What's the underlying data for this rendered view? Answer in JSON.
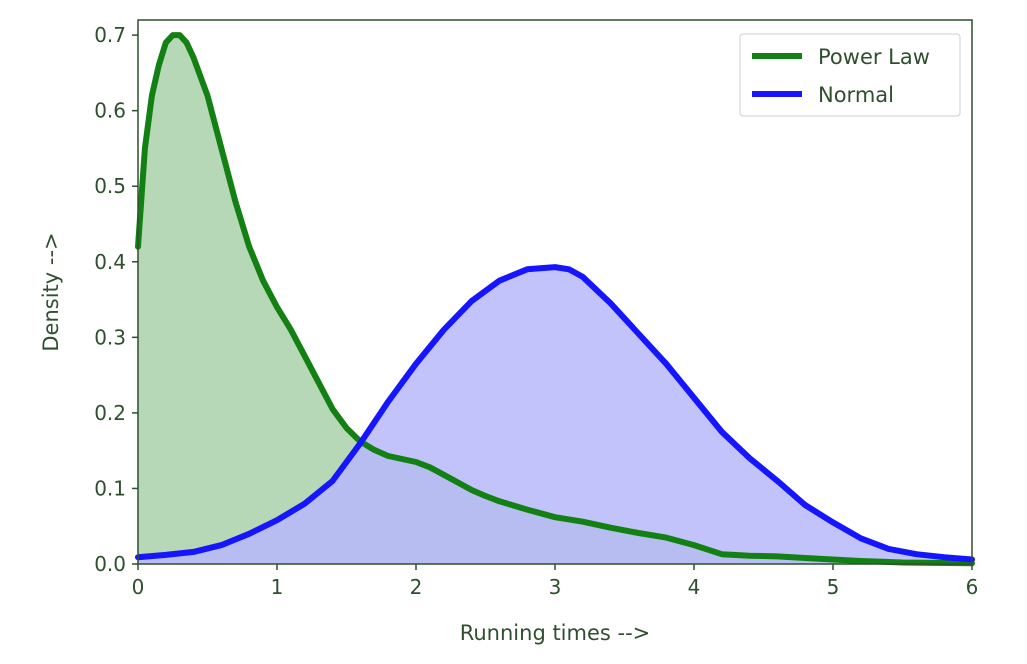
{
  "chart_data": {
    "type": "area",
    "title": "",
    "xlabel": "Running times  -->",
    "ylabel": "Density  -->",
    "xlim": [
      0,
      6
    ],
    "ylim": [
      0,
      0.72
    ],
    "xticks": [
      {
        "value": 0,
        "label": "0"
      },
      {
        "value": 1,
        "label": "1"
      },
      {
        "value": 2,
        "label": "2"
      },
      {
        "value": 3,
        "label": "3"
      },
      {
        "value": 4,
        "label": "4"
      },
      {
        "value": 5,
        "label": "5"
      },
      {
        "value": 6,
        "label": "6"
      }
    ],
    "yticks": [
      {
        "value": 0.0,
        "label": "0.0"
      },
      {
        "value": 0.1,
        "label": "0.1"
      },
      {
        "value": 0.2,
        "label": "0.2"
      },
      {
        "value": 0.3,
        "label": "0.3"
      },
      {
        "value": 0.4,
        "label": "0.4"
      },
      {
        "value": 0.5,
        "label": "0.5"
      },
      {
        "value": 0.6,
        "label": "0.6"
      },
      {
        "value": 0.7,
        "label": "0.7"
      }
    ],
    "grid": false,
    "legend_position": "top-right",
    "series": [
      {
        "name": "Power Law",
        "color": "#138013",
        "fill_color": "#a9d1a9",
        "x": [
          0,
          0.05,
          0.1,
          0.15,
          0.2,
          0.25,
          0.3,
          0.35,
          0.4,
          0.5,
          0.6,
          0.7,
          0.8,
          0.9,
          1.0,
          1.1,
          1.2,
          1.3,
          1.4,
          1.5,
          1.6,
          1.7,
          1.8,
          1.9,
          2.0,
          2.1,
          2.2,
          2.3,
          2.4,
          2.5,
          2.6,
          2.8,
          3.0,
          3.2,
          3.4,
          3.6,
          3.8,
          4.0,
          4.2,
          4.4,
          4.6,
          4.8,
          5.0,
          5.2,
          5.5,
          6.0
        ],
        "y": [
          0.42,
          0.55,
          0.62,
          0.66,
          0.69,
          0.7,
          0.7,
          0.69,
          0.67,
          0.62,
          0.55,
          0.48,
          0.42,
          0.375,
          0.34,
          0.31,
          0.275,
          0.24,
          0.205,
          0.18,
          0.162,
          0.151,
          0.143,
          0.139,
          0.135,
          0.128,
          0.118,
          0.108,
          0.098,
          0.09,
          0.083,
          0.072,
          0.062,
          0.056,
          0.048,
          0.041,
          0.035,
          0.025,
          0.013,
          0.011,
          0.01,
          0.008,
          0.006,
          0.004,
          0.002,
          0.001
        ]
      },
      {
        "name": "Normal",
        "color": "#1515ff",
        "fill_color": "#b9b9fb",
        "x": [
          0,
          0.2,
          0.4,
          0.6,
          0.8,
          1.0,
          1.2,
          1.4,
          1.6,
          1.8,
          2.0,
          2.2,
          2.4,
          2.6,
          2.8,
          3.0,
          3.1,
          3.2,
          3.4,
          3.6,
          3.8,
          4.0,
          4.2,
          4.4,
          4.6,
          4.8,
          5.0,
          5.2,
          5.4,
          5.6,
          5.8,
          6.0
        ],
        "y": [
          0.009,
          0.012,
          0.016,
          0.025,
          0.04,
          0.058,
          0.08,
          0.11,
          0.16,
          0.215,
          0.265,
          0.31,
          0.348,
          0.375,
          0.39,
          0.393,
          0.39,
          0.38,
          0.345,
          0.305,
          0.265,
          0.22,
          0.175,
          0.14,
          0.11,
          0.078,
          0.055,
          0.034,
          0.02,
          0.013,
          0.009,
          0.006
        ]
      }
    ]
  }
}
